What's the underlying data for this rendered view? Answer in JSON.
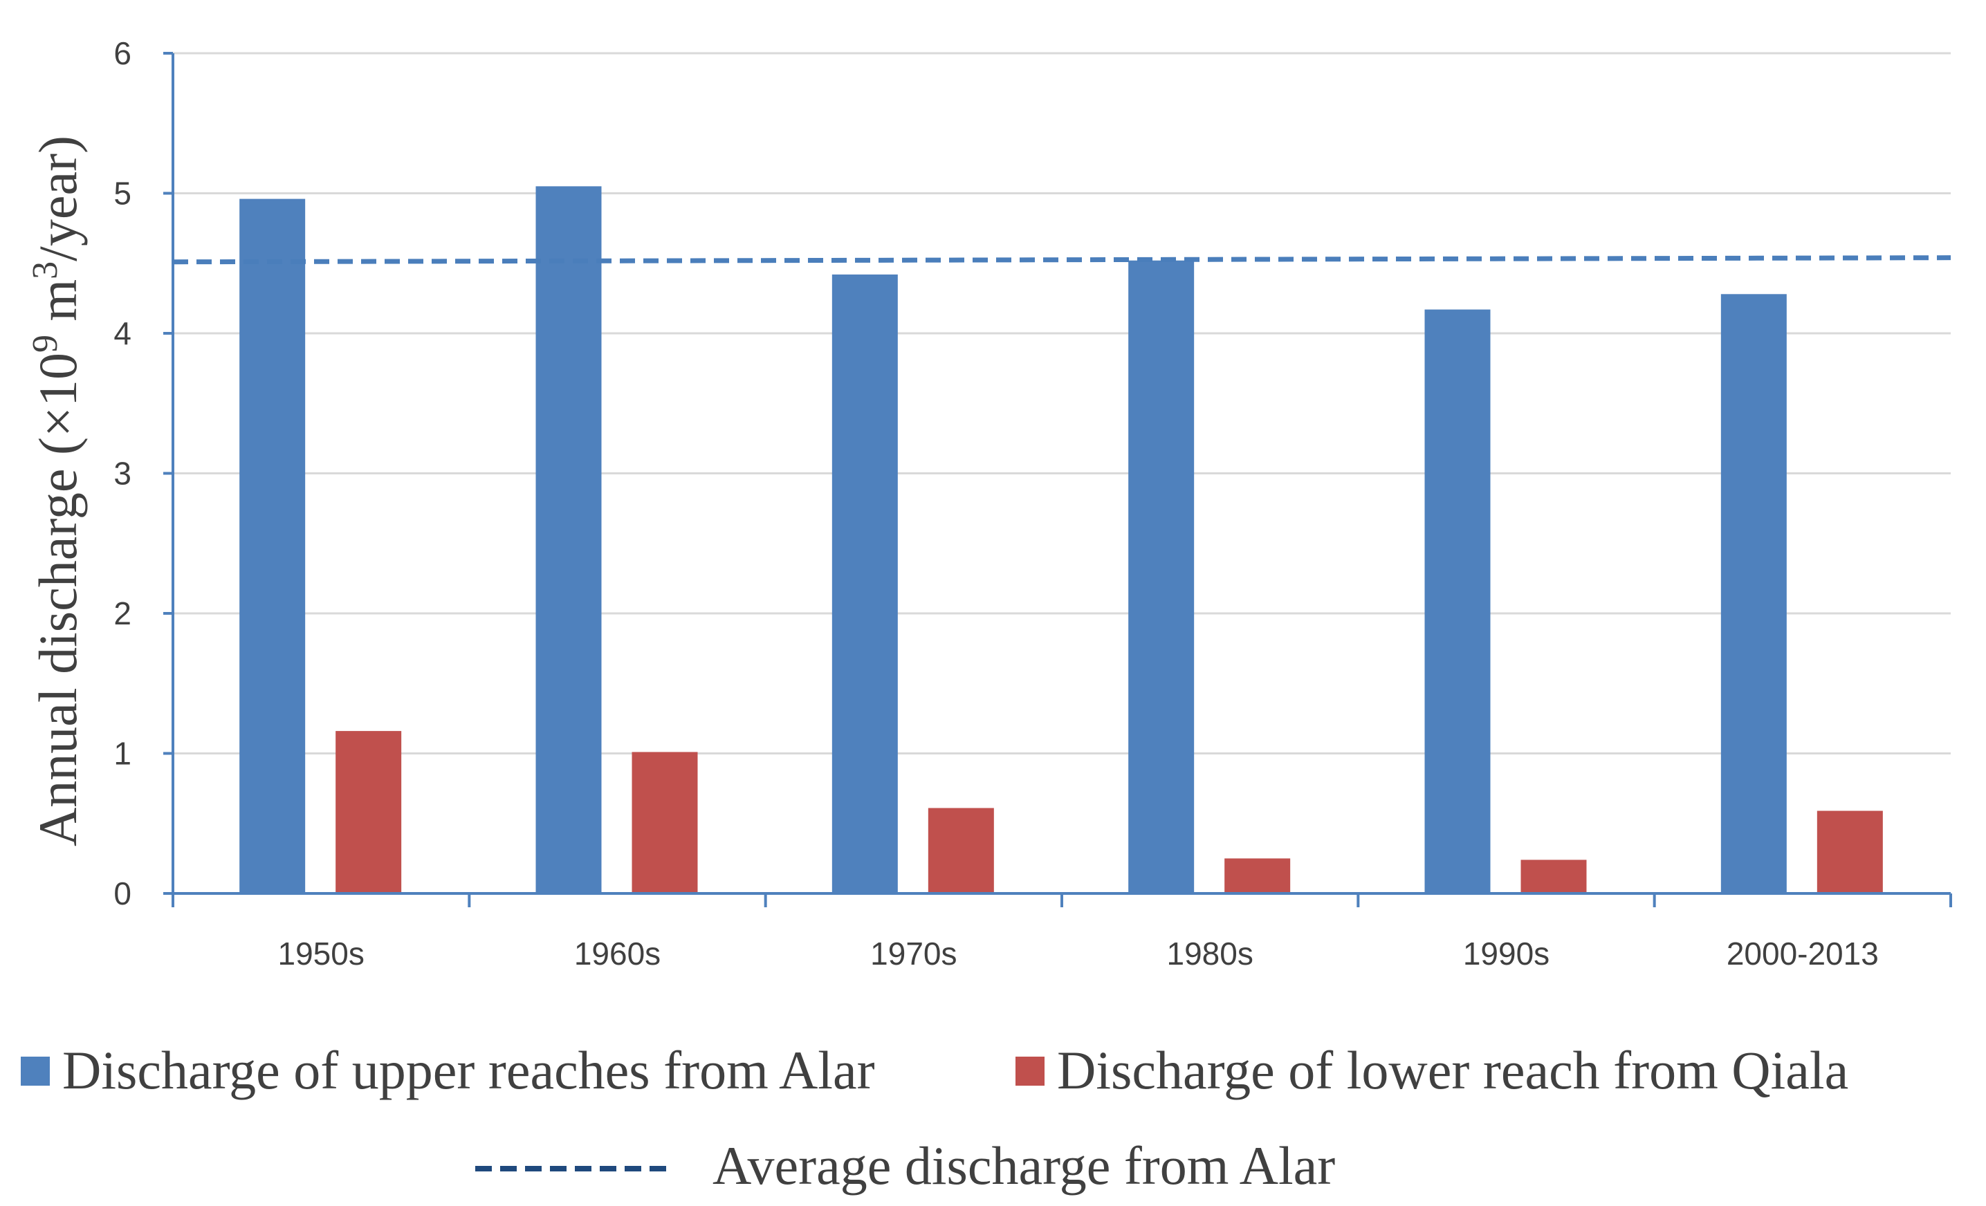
{
  "chart_data": {
    "type": "bar",
    "categories": [
      "1950s",
      "1960s",
      "1970s",
      "1980s",
      "1990s",
      "2000-2013"
    ],
    "series": [
      {
        "name": "Discharge of upper reaches from Alar",
        "values": [
          4.96,
          5.05,
          4.42,
          4.52,
          4.17,
          4.28
        ],
        "color": "#4F81BD"
      },
      {
        "name": "Discharge of lower reach from Qiala",
        "values": [
          1.16,
          1.01,
          0.61,
          0.25,
          0.24,
          0.59
        ],
        "color": "#C0504D"
      }
    ],
    "reference_line": {
      "name": "Average discharge from Alar",
      "value_start": 4.51,
      "value_end": 4.54,
      "color": "#4A7EBB",
      "style": "dashed"
    },
    "ylabel": {
      "main": "Annual discharge (×10",
      "exp1": "9",
      "mid": " m",
      "exp2": "3",
      "end": "/year)"
    },
    "ylim": [
      0,
      6
    ],
    "yticks": [
      "0",
      "1",
      "2",
      "3",
      "4",
      "5",
      "6"
    ],
    "grid": true,
    "legend_position": "bottom"
  }
}
